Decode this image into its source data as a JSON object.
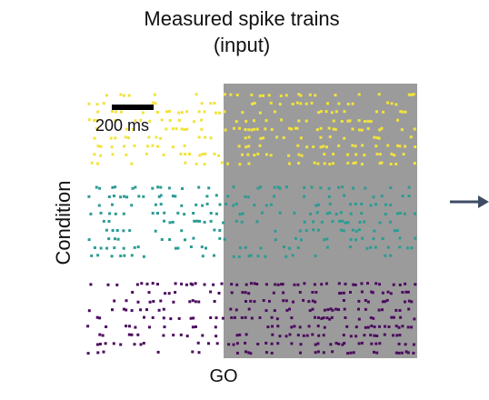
{
  "title": {
    "line1": "Measured spike trains",
    "line2": "(input)"
  },
  "axes": {
    "ylabel": "Condition",
    "xlabel": "GO"
  },
  "scale_bar": {
    "label": "200 ms"
  },
  "colors": {
    "shade": "#9b9b9b",
    "arrow": "#3d4c63",
    "conditions": [
      "#f2e33c",
      "#2b9c93",
      "#4b0b5e"
    ]
  },
  "conditions": [
    {
      "rows": 9,
      "pre_density": 0.22,
      "post_density": 0.3
    },
    {
      "rows": 9,
      "pre_density": 0.22,
      "post_density": 0.24
    },
    {
      "rows": 9,
      "pre_density": 0.24,
      "post_density": 0.33
    }
  ]
}
